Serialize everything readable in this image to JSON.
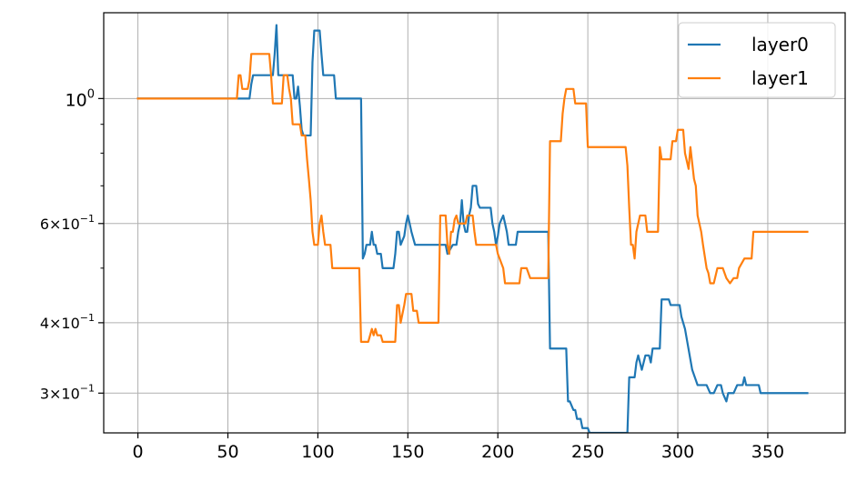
{
  "chart_data": {
    "type": "line",
    "title": "",
    "xlabel": "",
    "ylabel": "",
    "yscale": "log",
    "grid": true,
    "legend_position": "top-right",
    "xlim": [
      -19,
      393
    ],
    "ylim": [
      0.255,
      1.42
    ],
    "x_ticks": [
      0,
      50,
      100,
      150,
      200,
      250,
      300,
      350
    ],
    "x_tick_labels": [
      "0",
      "50",
      "100",
      "150",
      "200",
      "250",
      "300",
      "350"
    ],
    "y_ticks": [
      {
        "value": 1.0,
        "base": "10",
        "exp": "0",
        "coef": ""
      },
      {
        "value": 0.6,
        "base": "10",
        "exp": "−1",
        "coef": "6×"
      },
      {
        "value": 0.4,
        "base": "10",
        "exp": "−1",
        "coef": "4×"
      },
      {
        "value": 0.3,
        "base": "10",
        "exp": "−1",
        "coef": "3×"
      }
    ],
    "y_minor_ticks": [
      0.5,
      0.7,
      0.8,
      0.9
    ],
    "series": [
      {
        "name": "layer0",
        "color": "#1f77b4",
        "points": [
          [
            0,
            1.0
          ],
          [
            55,
            1.0
          ],
          [
            57,
            1.0
          ],
          [
            61,
            1.0
          ],
          [
            62,
            1.0
          ],
          [
            63,
            1.06
          ],
          [
            64,
            1.1
          ],
          [
            65,
            1.1
          ],
          [
            75,
            1.1
          ],
          [
            76,
            1.2
          ],
          [
            77,
            1.35
          ],
          [
            78,
            1.1
          ],
          [
            86,
            1.1
          ],
          [
            87,
            1.0
          ],
          [
            88,
            1.0
          ],
          [
            89,
            1.05
          ],
          [
            90,
            0.97
          ],
          [
            91,
            0.88
          ],
          [
            92,
            0.86
          ],
          [
            96,
            0.86
          ],
          [
            97,
            1.16
          ],
          [
            98,
            1.32
          ],
          [
            101,
            1.32
          ],
          [
            102,
            1.2
          ],
          [
            103,
            1.1
          ],
          [
            109,
            1.1
          ],
          [
            110,
            1.0
          ],
          [
            124,
            1.0
          ],
          [
            125,
            0.52
          ],
          [
            126,
            0.53
          ],
          [
            127,
            0.55
          ],
          [
            129,
            0.55
          ],
          [
            130,
            0.58
          ],
          [
            131,
            0.55
          ],
          [
            132,
            0.55
          ],
          [
            133,
            0.53
          ],
          [
            135,
            0.53
          ],
          [
            136,
            0.5
          ],
          [
            142,
            0.5
          ],
          [
            143,
            0.53
          ],
          [
            144,
            0.58
          ],
          [
            145,
            0.58
          ],
          [
            146,
            0.55
          ],
          [
            148,
            0.57
          ],
          [
            149,
            0.6
          ],
          [
            150,
            0.62
          ],
          [
            151,
            0.6
          ],
          [
            152,
            0.58
          ],
          [
            154,
            0.55
          ],
          [
            171,
            0.55
          ],
          [
            172,
            0.53
          ],
          [
            175,
            0.55
          ],
          [
            177,
            0.55
          ],
          [
            178,
            0.58
          ],
          [
            179,
            0.6
          ],
          [
            180,
            0.66
          ],
          [
            181,
            0.6
          ],
          [
            182,
            0.58
          ],
          [
            183,
            0.58
          ],
          [
            184,
            0.62
          ],
          [
            185,
            0.64
          ],
          [
            186,
            0.7
          ],
          [
            188,
            0.7
          ],
          [
            189,
            0.65
          ],
          [
            190,
            0.64
          ],
          [
            196,
            0.64
          ],
          [
            197,
            0.6
          ],
          [
            198,
            0.58
          ],
          [
            199,
            0.55
          ],
          [
            200,
            0.57
          ],
          [
            201,
            0.6
          ],
          [
            203,
            0.62
          ],
          [
            204,
            0.6
          ],
          [
            205,
            0.58
          ],
          [
            206,
            0.55
          ],
          [
            210,
            0.55
          ],
          [
            211,
            0.58
          ],
          [
            223,
            0.58
          ],
          [
            228,
            0.58
          ],
          [
            229,
            0.36
          ],
          [
            238,
            0.36
          ],
          [
            239,
            0.29
          ],
          [
            240,
            0.29
          ],
          [
            242,
            0.28
          ],
          [
            243,
            0.28
          ],
          [
            244,
            0.27
          ],
          [
            245,
            0.27
          ],
          [
            246,
            0.27
          ],
          [
            247,
            0.26
          ],
          [
            250,
            0.26
          ],
          [
            251,
            0.255
          ],
          [
            272,
            0.255
          ],
          [
            273,
            0.32
          ],
          [
            276,
            0.32
          ],
          [
            277,
            0.34
          ],
          [
            278,
            0.35
          ],
          [
            279,
            0.34
          ],
          [
            280,
            0.33
          ],
          [
            282,
            0.35
          ],
          [
            284,
            0.35
          ],
          [
            285,
            0.34
          ],
          [
            286,
            0.36
          ],
          [
            290,
            0.36
          ],
          [
            291,
            0.44
          ],
          [
            295,
            0.44
          ],
          [
            296,
            0.43
          ],
          [
            301,
            0.43
          ],
          [
            302,
            0.41
          ],
          [
            304,
            0.39
          ],
          [
            308,
            0.33
          ],
          [
            311,
            0.31
          ],
          [
            312,
            0.31
          ],
          [
            316,
            0.31
          ],
          [
            318,
            0.3
          ],
          [
            320,
            0.3
          ],
          [
            322,
            0.31
          ],
          [
            324,
            0.31
          ],
          [
            325,
            0.3
          ],
          [
            327,
            0.29
          ],
          [
            328,
            0.3
          ],
          [
            331,
            0.3
          ],
          [
            333,
            0.31
          ],
          [
            336,
            0.31
          ],
          [
            337,
            0.32
          ],
          [
            338,
            0.31
          ],
          [
            345,
            0.31
          ],
          [
            346,
            0.3
          ],
          [
            372,
            0.3
          ]
        ]
      },
      {
        "name": "layer1",
        "color": "#ff7f0e",
        "points": [
          [
            0,
            1.0
          ],
          [
            55,
            1.0
          ],
          [
            56,
            1.1
          ],
          [
            57,
            1.1
          ],
          [
            58,
            1.04
          ],
          [
            61,
            1.04
          ],
          [
            62,
            1.08
          ],
          [
            63,
            1.2
          ],
          [
            73,
            1.2
          ],
          [
            74,
            1.1
          ],
          [
            75,
            0.98
          ],
          [
            80,
            0.98
          ],
          [
            81,
            1.1
          ],
          [
            83,
            1.1
          ],
          [
            84,
            1.04
          ],
          [
            85,
            1.0
          ],
          [
            86,
            0.9
          ],
          [
            90,
            0.9
          ],
          [
            91,
            0.86
          ],
          [
            93,
            0.86
          ],
          [
            94,
            0.78
          ],
          [
            95,
            0.72
          ],
          [
            96,
            0.66
          ],
          [
            97,
            0.58
          ],
          [
            98,
            0.55
          ],
          [
            99,
            0.55
          ],
          [
            100,
            0.55
          ],
          [
            101,
            0.6
          ],
          [
            102,
            0.62
          ],
          [
            103,
            0.58
          ],
          [
            104,
            0.55
          ],
          [
            107,
            0.55
          ],
          [
            108,
            0.5
          ],
          [
            123,
            0.5
          ],
          [
            124,
            0.37
          ],
          [
            128,
            0.37
          ],
          [
            130,
            0.39
          ],
          [
            131,
            0.38
          ],
          [
            132,
            0.39
          ],
          [
            133,
            0.38
          ],
          [
            135,
            0.38
          ],
          [
            136,
            0.37
          ],
          [
            143,
            0.37
          ],
          [
            144,
            0.43
          ],
          [
            145,
            0.43
          ],
          [
            146,
            0.4
          ],
          [
            148,
            0.43
          ],
          [
            149,
            0.45
          ],
          [
            152,
            0.45
          ],
          [
            153,
            0.42
          ],
          [
            155,
            0.42
          ],
          [
            156,
            0.4
          ],
          [
            167,
            0.4
          ],
          [
            168,
            0.62
          ],
          [
            171,
            0.62
          ],
          [
            172,
            0.55
          ],
          [
            173,
            0.53
          ],
          [
            174,
            0.58
          ],
          [
            175,
            0.58
          ],
          [
            176,
            0.61
          ],
          [
            177,
            0.62
          ],
          [
            178,
            0.6
          ],
          [
            182,
            0.6
          ],
          [
            183,
            0.62
          ],
          [
            186,
            0.62
          ],
          [
            187,
            0.58
          ],
          [
            188,
            0.55
          ],
          [
            190,
            0.55
          ],
          [
            199,
            0.55
          ],
          [
            200,
            0.53
          ],
          [
            203,
            0.5
          ],
          [
            204,
            0.47
          ],
          [
            208,
            0.47
          ],
          [
            210,
            0.47
          ],
          [
            212,
            0.47
          ],
          [
            213,
            0.5
          ],
          [
            216,
            0.5
          ],
          [
            218,
            0.48
          ],
          [
            227,
            0.48
          ],
          [
            228,
            0.48
          ],
          [
            229,
            0.84
          ],
          [
            235,
            0.84
          ],
          [
            236,
            0.94
          ],
          [
            237,
            1.0
          ],
          [
            238,
            1.04
          ],
          [
            242,
            1.04
          ],
          [
            243,
            0.98
          ],
          [
            249,
            0.98
          ],
          [
            250,
            0.82
          ],
          [
            271,
            0.82
          ],
          [
            272,
            0.76
          ],
          [
            273,
            0.64
          ],
          [
            274,
            0.55
          ],
          [
            275,
            0.55
          ],
          [
            276,
            0.52
          ],
          [
            277,
            0.58
          ],
          [
            279,
            0.62
          ],
          [
            282,
            0.62
          ],
          [
            283,
            0.58
          ],
          [
            289,
            0.58
          ],
          [
            290,
            0.82
          ],
          [
            291,
            0.78
          ],
          [
            292,
            0.78
          ],
          [
            296,
            0.78
          ],
          [
            297,
            0.84
          ],
          [
            299,
            0.84
          ],
          [
            300,
            0.88
          ],
          [
            303,
            0.88
          ],
          [
            304,
            0.8
          ],
          [
            306,
            0.75
          ],
          [
            307,
            0.82
          ],
          [
            309,
            0.72
          ],
          [
            310,
            0.7
          ],
          [
            311,
            0.62
          ],
          [
            313,
            0.58
          ],
          [
            314,
            0.55
          ],
          [
            316,
            0.5
          ],
          [
            317,
            0.49
          ],
          [
            318,
            0.47
          ],
          [
            319,
            0.47
          ],
          [
            320,
            0.47
          ],
          [
            322,
            0.5
          ],
          [
            325,
            0.5
          ],
          [
            327,
            0.48
          ],
          [
            329,
            0.47
          ],
          [
            331,
            0.48
          ],
          [
            333,
            0.48
          ],
          [
            334,
            0.5
          ],
          [
            337,
            0.52
          ],
          [
            341,
            0.52
          ],
          [
            342,
            0.58
          ],
          [
            372,
            0.58
          ]
        ]
      }
    ]
  }
}
